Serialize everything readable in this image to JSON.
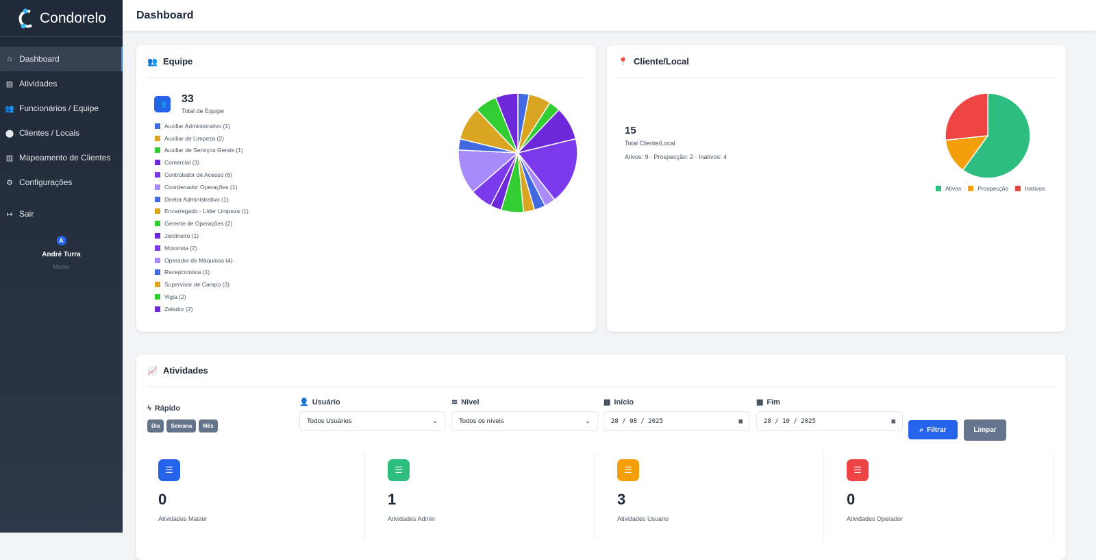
{
  "app": {
    "name": "Condorelo"
  },
  "sidebar": {
    "items": [
      {
        "label": "Dashboard",
        "icon": "home-icon",
        "glyph": "⌂",
        "active": true
      },
      {
        "label": "Atividades",
        "icon": "clipboard-icon",
        "glyph": "▤"
      },
      {
        "label": "Funcionários / Equipe",
        "icon": "users-icon",
        "glyph": "👥"
      },
      {
        "label": "Clientes / Locais",
        "icon": "map-pin-icon",
        "glyph": "⬤"
      },
      {
        "label": "Mapeamento de Clientes",
        "icon": "map-icon",
        "glyph": "▥"
      },
      {
        "label": "Configurações",
        "icon": "gear-icon",
        "glyph": "⚙"
      }
    ],
    "logout": {
      "label": "Sair",
      "glyph": "↦"
    },
    "user": {
      "initial": "A",
      "name": "André Turra",
      "role": "Master"
    }
  },
  "header": {
    "title": "Dashboard"
  },
  "equipe": {
    "title": "Equipe",
    "total": "33",
    "total_label": "Total de Equipe"
  },
  "cliente": {
    "title": "Cliente/Local",
    "total": "15",
    "total_label": "Total Cliente/Local",
    "summary": "Ativos: 9 · Prospecção: 2 · Inativos: 4"
  },
  "chart_data": [
    {
      "type": "pie",
      "categories": [
        "Auxiliar Administrativo",
        "Auxiliar de Limpeza",
        "Auxiliar de Serviços Gerais",
        "Comercial",
        "Controlador de Acesso",
        "Coordenador Operações",
        "Diretor Administrativo",
        "Encarregado - Líder Limpeza",
        "Gerente de Operações",
        "Jardineiro",
        "Motorista",
        "Operador de Máquinas",
        "Recepcionista",
        "Supervisor de Campo",
        "Vigia",
        "Zelador"
      ],
      "values": [
        1,
        2,
        1,
        3,
        6,
        1,
        1,
        1,
        2,
        1,
        2,
        4,
        1,
        3,
        2,
        2
      ],
      "colors": [
        "#4169e1",
        "#daa520",
        "#32cd32",
        "#6d28d9",
        "#7c3aed",
        "#a78bfa",
        "#4169e1",
        "#daa520",
        "#32cd32",
        "#6d28d9",
        "#7c3aed",
        "#a78bfa",
        "#4169e1",
        "#daa520",
        "#32cd32",
        "#6d28d9"
      ],
      "legend": "left"
    },
    {
      "type": "pie",
      "categories": [
        "Ativos",
        "Prospecção",
        "Inativos"
      ],
      "values": [
        9,
        2,
        4
      ],
      "colors": [
        "#2dbd7e",
        "#f59e0b",
        "#ef4444"
      ],
      "legend": "bottom"
    }
  ],
  "atividades": {
    "title": "Atividades",
    "rapido": {
      "label": "Rápido",
      "buttons": [
        "Dia",
        "Semana",
        "Mês"
      ]
    },
    "usuario": {
      "label": "Usuário",
      "value": "Todos Usuários"
    },
    "nivel": {
      "label": "Nível",
      "value": "Todos os níveis"
    },
    "inicio": {
      "label": "Início",
      "value": "28 / 08 / 2025"
    },
    "fim": {
      "label": "Fim",
      "value": "28 / 10 / 2025"
    },
    "filtrar": "Filtrar",
    "limpar": "Limpar",
    "stats": [
      {
        "value": "0",
        "label": "Atividades Master",
        "color": "#2563eb"
      },
      {
        "value": "1",
        "label": "Atividades Admin",
        "color": "#2dbd7e"
      },
      {
        "value": "3",
        "label": "Atividades Usuario",
        "color": "#f59e0b"
      },
      {
        "value": "0",
        "label": "Atividades Operador",
        "color": "#ef4444"
      }
    ]
  }
}
